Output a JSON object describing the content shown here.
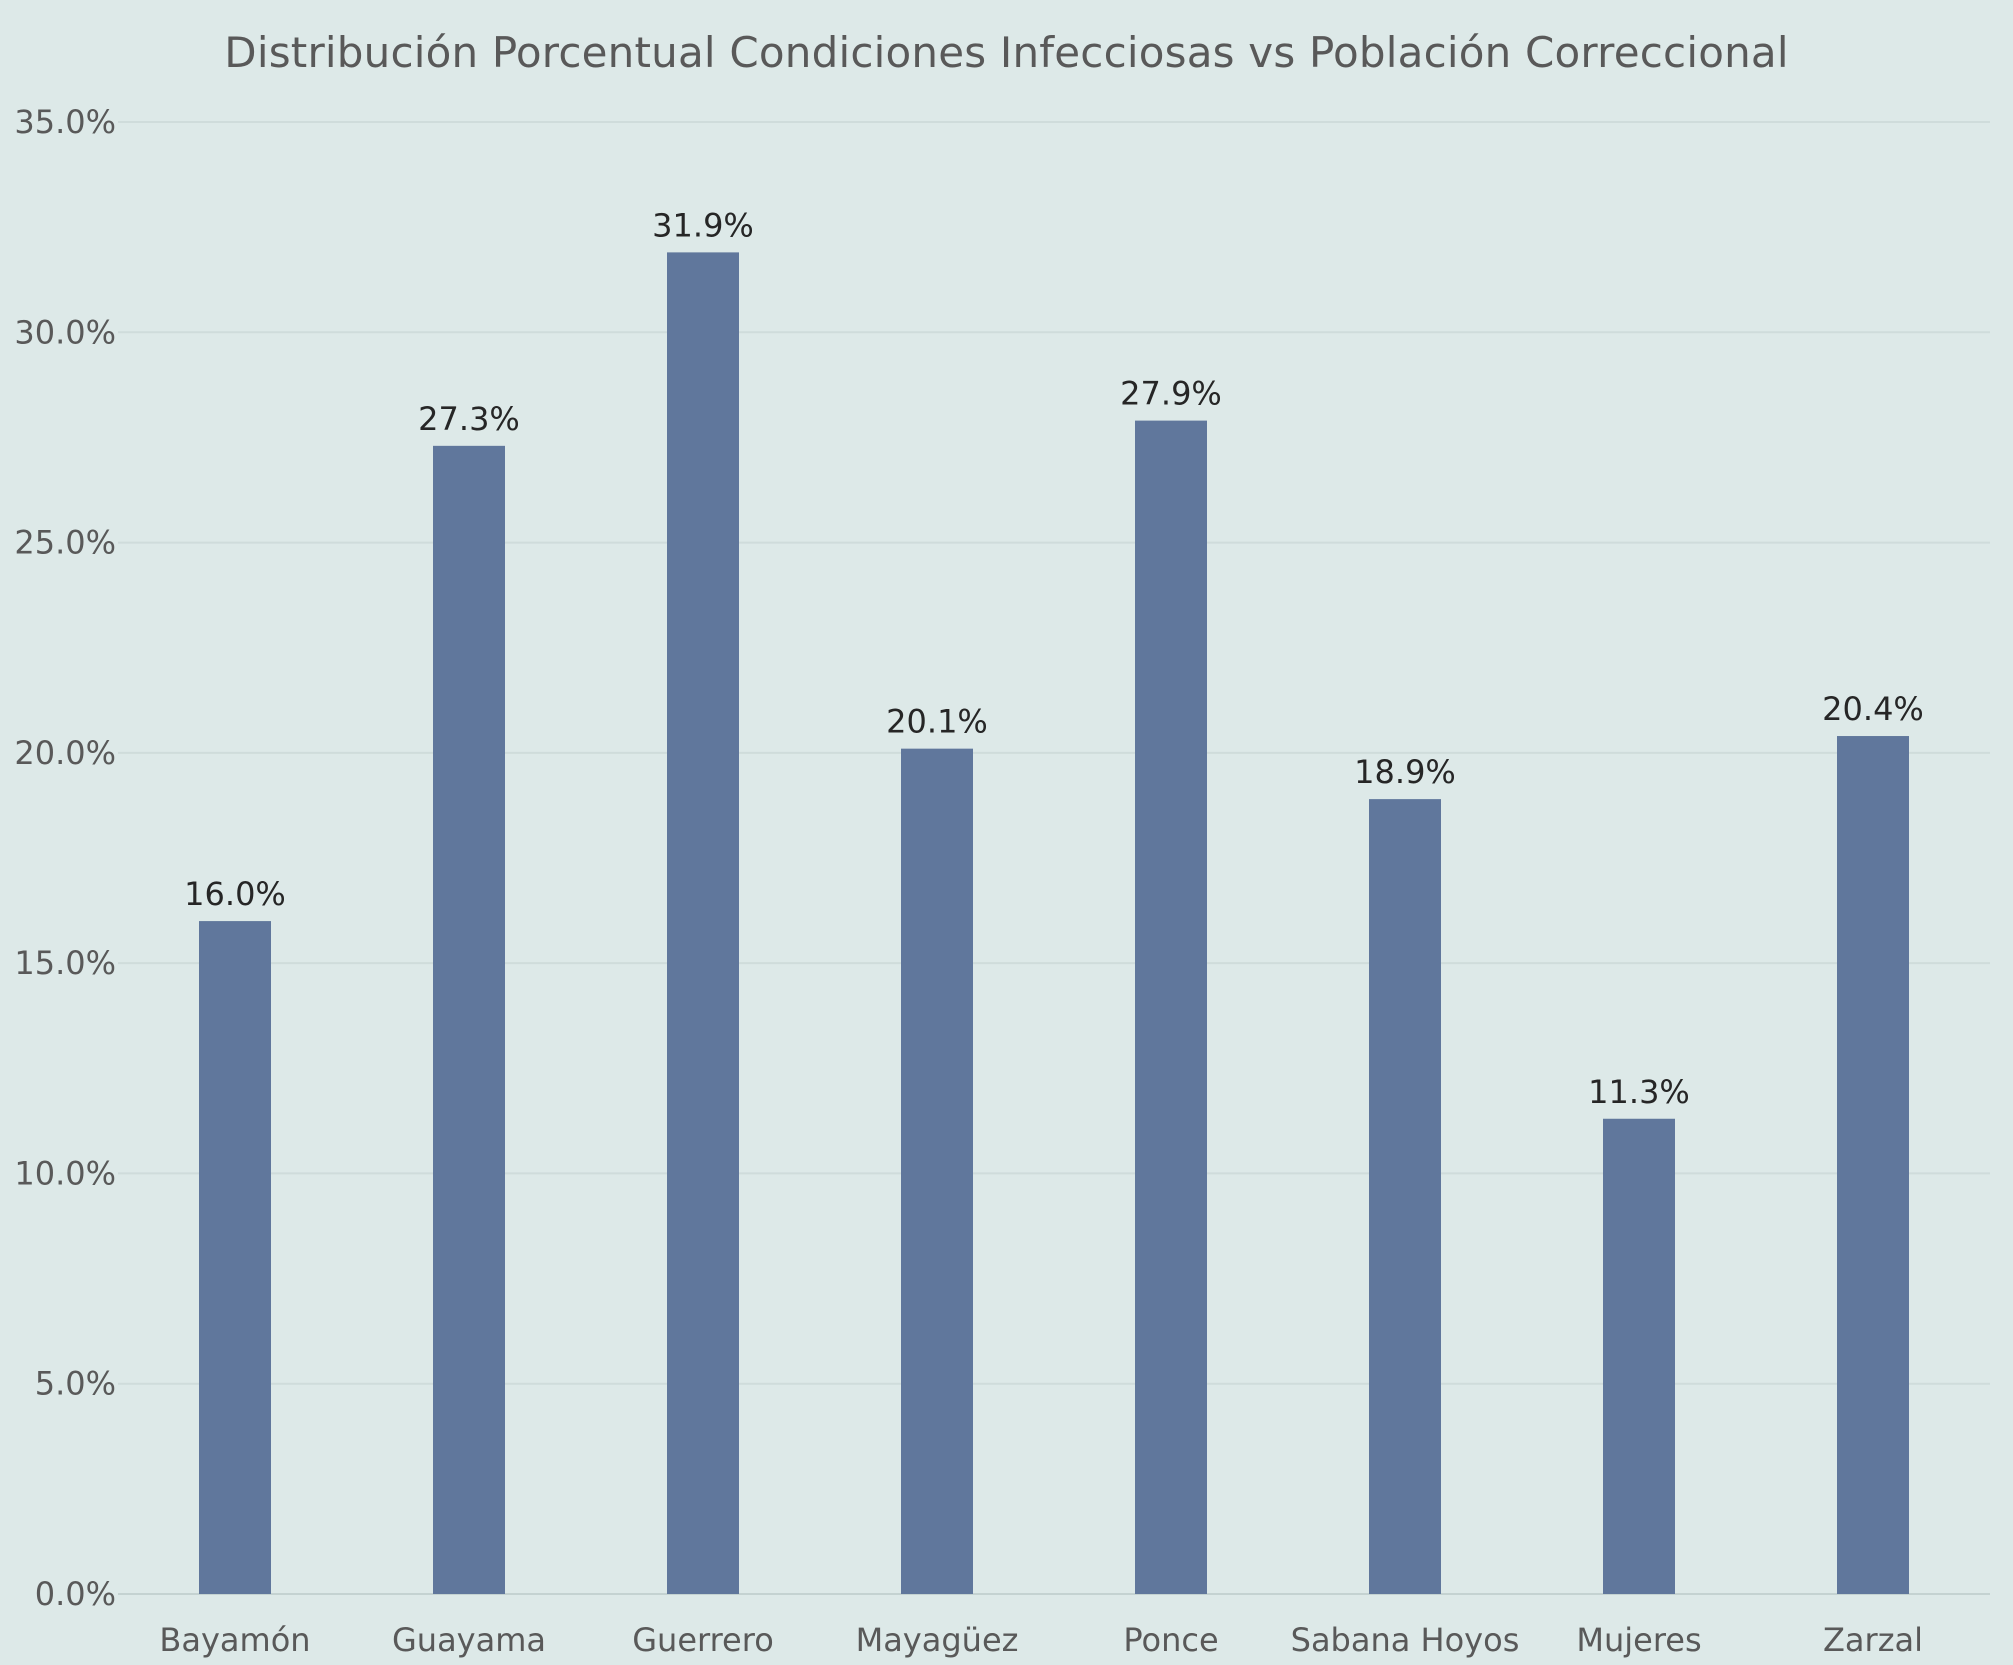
{
  "chart_data": {
    "type": "bar",
    "title": "Distribución Porcentual  Condiciones Infecciosas vs Población Correccional",
    "xlabel": "",
    "ylabel": "",
    "categories": [
      "Bayamón",
      "Guayama",
      "Guerrero",
      "Mayagüez",
      "Ponce",
      "Sabana Hoyos",
      "Mujeres",
      "Zarzal"
    ],
    "values": [
      16.0,
      27.3,
      31.9,
      20.1,
      27.9,
      18.9,
      11.3,
      20.4
    ],
    "data_labels": [
      "16.0%",
      "27.3%",
      "31.9%",
      "20.1%",
      "27.9%",
      "18.9%",
      "11.3%",
      "20.4%"
    ],
    "ylim": [
      0,
      35
    ],
    "yticks": [
      0,
      5,
      10,
      15,
      20,
      25,
      30,
      35
    ],
    "ytick_labels": [
      "0.0%",
      "5.0%",
      "10.0%",
      "15.0%",
      "20.0%",
      "25.0%",
      "30.0%",
      "35.0%"
    ],
    "grid": true,
    "legend": "none",
    "colors": {
      "bar": "#60779c",
      "background": "#dde9e8",
      "grid": "#cfdcdb",
      "text": "#595959",
      "data_label": "#262626"
    }
  }
}
